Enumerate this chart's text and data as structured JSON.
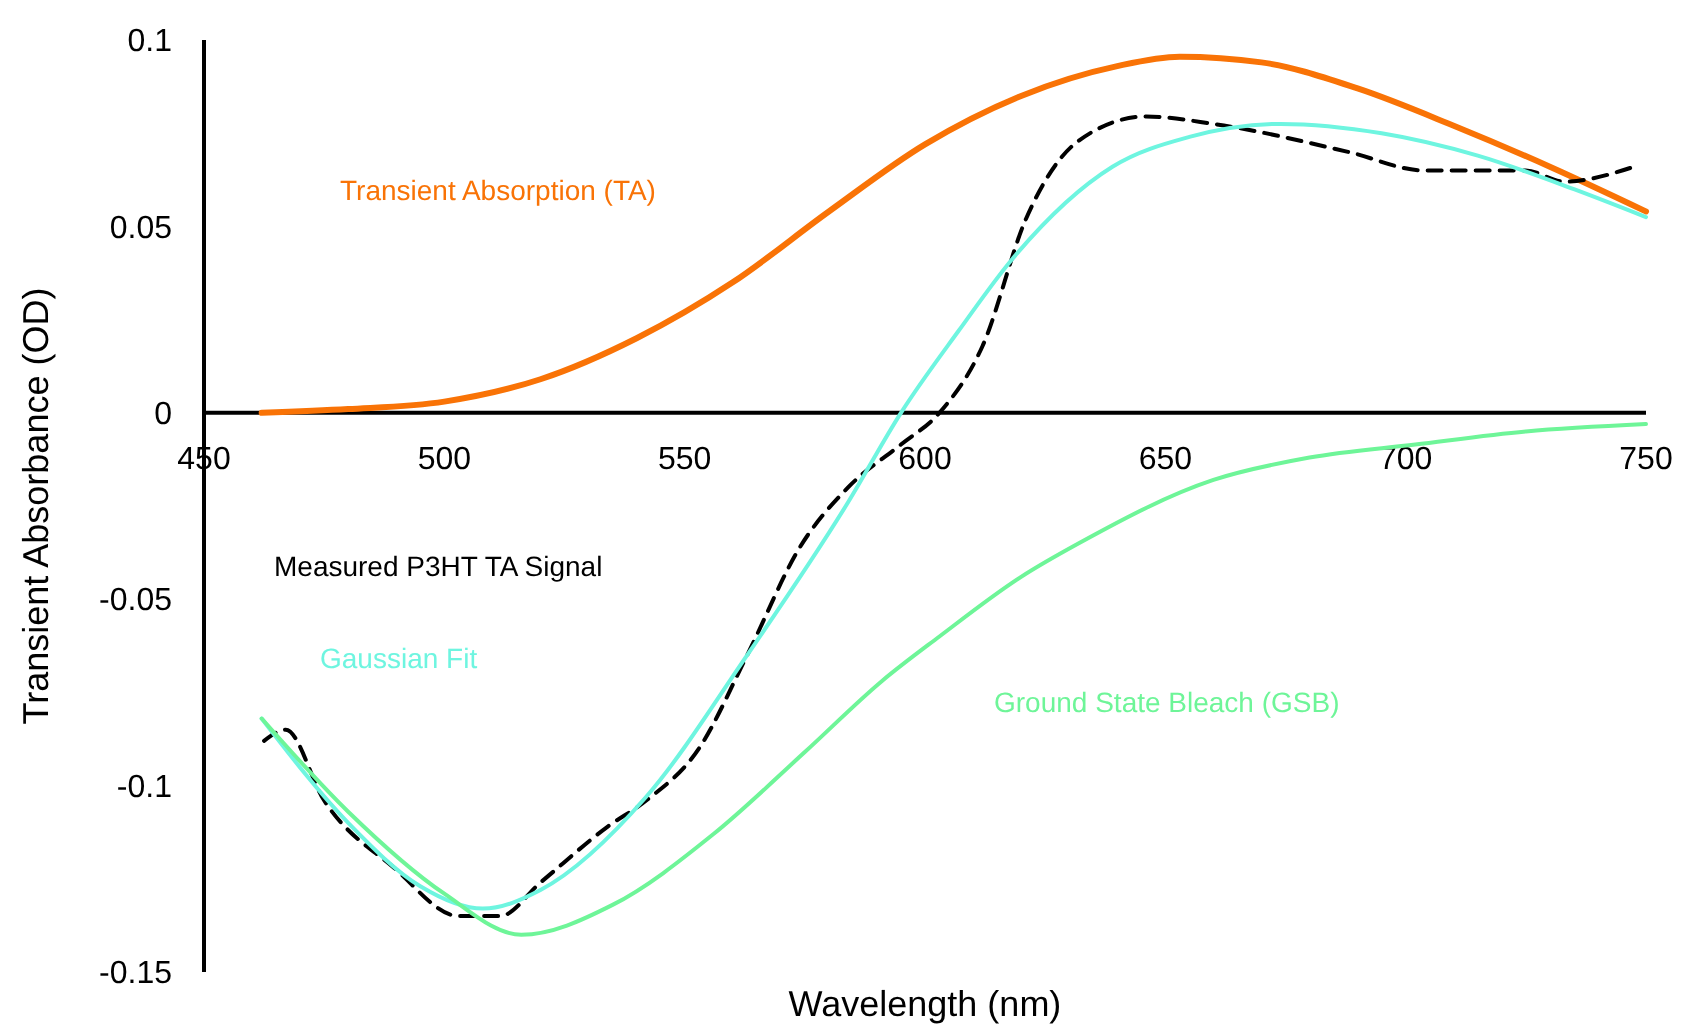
{
  "chart_data": {
    "type": "line",
    "xlabel": "Wavelength (nm)",
    "ylabel": "Transient Absorbance (OD)",
    "xlim": [
      450,
      750
    ],
    "xticks": [
      450,
      500,
      550,
      600,
      650,
      700,
      750
    ],
    "ylim": [
      -0.15,
      0.1
    ],
    "yticks": [
      -0.15,
      -0.1,
      -0.05,
      0,
      0.05,
      0.1
    ],
    "grid": false,
    "legend": false,
    "marker": "none",
    "series": [
      {
        "name": "Transient Absorption (TA)",
        "color": "#f97306",
        "line_style": "solid",
        "x": [
          462,
          480,
          500,
          520,
          540,
          560,
          580,
          600,
          620,
          640,
          653,
          670,
          690,
          710,
          730,
          750
        ],
        "values": [
          0,
          0.001,
          0.003,
          0.009,
          0.02,
          0.035,
          0.054,
          0.072,
          0.085,
          0.093,
          0.0955,
          0.094,
          0.087,
          0.077,
          0.066,
          0.054
        ]
      },
      {
        "name": "Measured P3HT TA Signal",
        "color": "#000000",
        "line_style": "dashed",
        "x": [
          462.5,
          467,
          475,
          489.5,
          503,
          511.6,
          520,
          534,
          542,
          553,
          563,
          574,
          584,
          595,
          603,
          612,
          621,
          632,
          646,
          660,
          688,
          704,
          725,
          733,
          747.5
        ],
        "values": [
          -0.088,
          -0.085,
          -0.104,
          -0.122,
          -0.135,
          -0.135,
          -0.126,
          -0.111,
          -0.104,
          -0.09,
          -0.065,
          -0.036,
          -0.02,
          -0.0085,
          0,
          0.018,
          0.052,
          0.073,
          0.0795,
          0.0775,
          0.07,
          0.065,
          0.065,
          0.062,
          0.066
        ]
      },
      {
        "name": "Gaussian Fit",
        "color": "#6ef5e0",
        "line_style": "solid",
        "x": [
          462,
          480,
          495,
          508,
          520,
          542,
          563,
          584,
          595,
          607,
          618,
          639,
          655,
          674,
          695,
          715,
          735,
          750
        ],
        "values": [
          -0.082,
          -0.11,
          -0.127,
          -0.133,
          -0.128,
          -0.103,
          -0.065,
          -0.024,
          0,
          0.022,
          0.041,
          0.066,
          0.074,
          0.0775,
          0.075,
          0.069,
          0.06,
          0.0525
        ]
      },
      {
        "name": "Ground State Bleach (GSB)",
        "color": "#6ef598",
        "line_style": "solid",
        "x": [
          462,
          480,
          500,
          516,
          535,
          556,
          575,
          591,
          603,
          620,
          632,
          660,
          680,
          702,
          725,
          750
        ],
        "values": [
          -0.082,
          -0.107,
          -0.129,
          -0.14,
          -0.132,
          -0.113,
          -0.091,
          -0.072,
          -0.06,
          -0.044,
          -0.035,
          -0.018,
          -0.012,
          -0.0085,
          -0.005,
          -0.003
        ]
      }
    ]
  }
}
